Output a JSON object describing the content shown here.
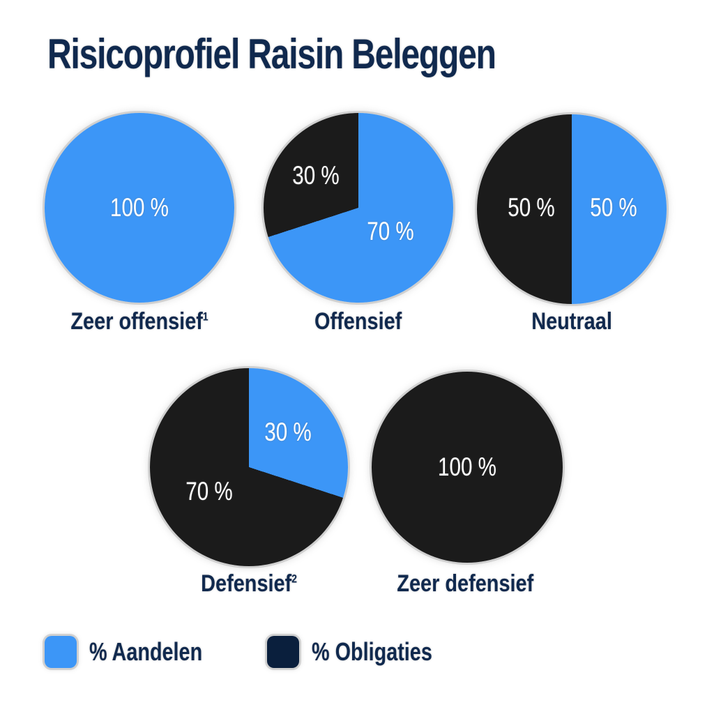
{
  "title": "Risicoprofiel Raisin Beleggen",
  "colors": {
    "aandelen_blue": "#3C96F7",
    "obligaties_pie_dark": "#1B1B1B",
    "obligaties_navy": "#0A1F3D",
    "heading_navy": "#10294E",
    "percent_text": "#FFFFFF",
    "background": "#FFFFFF"
  },
  "chart_data": [
    {
      "type": "pie",
      "title": "Zeer offensief",
      "superscript": "1",
      "slices": [
        {
          "name": "% Aandelen",
          "value": 100,
          "display": "100 %",
          "color_key": "aandelen_blue"
        }
      ]
    },
    {
      "type": "pie",
      "title": "Offensief",
      "slices": [
        {
          "name": "% Aandelen",
          "value": 70,
          "display": "70 %",
          "color_key": "aandelen_blue"
        },
        {
          "name": "% Obligaties",
          "value": 30,
          "display": "30 %",
          "color_key": "obligaties_pie_dark"
        }
      ]
    },
    {
      "type": "pie",
      "title": "Neutraal",
      "slices": [
        {
          "name": "% Aandelen",
          "value": 50,
          "display": "50 %",
          "color_key": "aandelen_blue"
        },
        {
          "name": "% Obligaties",
          "value": 50,
          "display": "50 %",
          "color_key": "obligaties_pie_dark"
        }
      ]
    },
    {
      "type": "pie",
      "title": "Defensief",
      "superscript": "2",
      "slices": [
        {
          "name": "% Aandelen",
          "value": 30,
          "display": "30 %",
          "color_key": "aandelen_blue"
        },
        {
          "name": "% Obligaties",
          "value": 70,
          "display": "70 %",
          "color_key": "obligaties_pie_dark"
        }
      ]
    },
    {
      "type": "pie",
      "title": "Zeer defensief",
      "slices": [
        {
          "name": "% Obligaties",
          "value": 100,
          "display": "100 %",
          "color_key": "obligaties_pie_dark"
        }
      ]
    }
  ],
  "legend": {
    "items": [
      {
        "label": "% Aandelen",
        "color": "#3C96F7"
      },
      {
        "label": "% Obligaties",
        "color": "#0A1F3D"
      }
    ]
  }
}
